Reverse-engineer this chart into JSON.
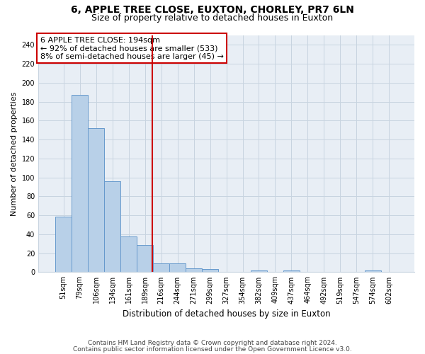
{
  "title1": "6, APPLE TREE CLOSE, EUXTON, CHORLEY, PR7 6LN",
  "title2": "Size of property relative to detached houses in Euxton",
  "xlabel": "Distribution of detached houses by size in Euxton",
  "ylabel": "Number of detached properties",
  "categories": [
    "51sqm",
    "79sqm",
    "106sqm",
    "134sqm",
    "161sqm",
    "189sqm",
    "216sqm",
    "244sqm",
    "271sqm",
    "299sqm",
    "327sqm",
    "354sqm",
    "382sqm",
    "409sqm",
    "437sqm",
    "464sqm",
    "492sqm",
    "519sqm",
    "547sqm",
    "574sqm",
    "602sqm"
  ],
  "values": [
    59,
    187,
    152,
    96,
    38,
    29,
    9,
    9,
    4,
    3,
    0,
    0,
    2,
    0,
    2,
    0,
    0,
    0,
    0,
    2,
    0
  ],
  "bar_color": "#b8d0e8",
  "bar_edge_color": "#6699cc",
  "vline_color": "#cc0000",
  "vline_x": 5.45,
  "annotation_line1": "6 APPLE TREE CLOSE: 194sqm",
  "annotation_line2": "← 92% of detached houses are smaller (533)",
  "annotation_line3": "8% of semi-detached houses are larger (45) →",
  "annotation_box_facecolor": "#ffffff",
  "annotation_box_edgecolor": "#cc0000",
  "ylim": [
    0,
    250
  ],
  "yticks": [
    0,
    20,
    40,
    60,
    80,
    100,
    120,
    140,
    160,
    180,
    200,
    220,
    240
  ],
  "footer1": "Contains HM Land Registry data © Crown copyright and database right 2024.",
  "footer2": "Contains public sector information licensed under the Open Government Licence v3.0.",
  "fig_bg_color": "#ffffff",
  "plot_bg_color": "#e8eef5",
  "grid_color": "#c8d4e0",
  "title1_fontsize": 10,
  "title2_fontsize": 9,
  "ylabel_fontsize": 8,
  "xlabel_fontsize": 8.5,
  "tick_fontsize": 7,
  "annotation_fontsize": 8,
  "footer_fontsize": 6.5
}
